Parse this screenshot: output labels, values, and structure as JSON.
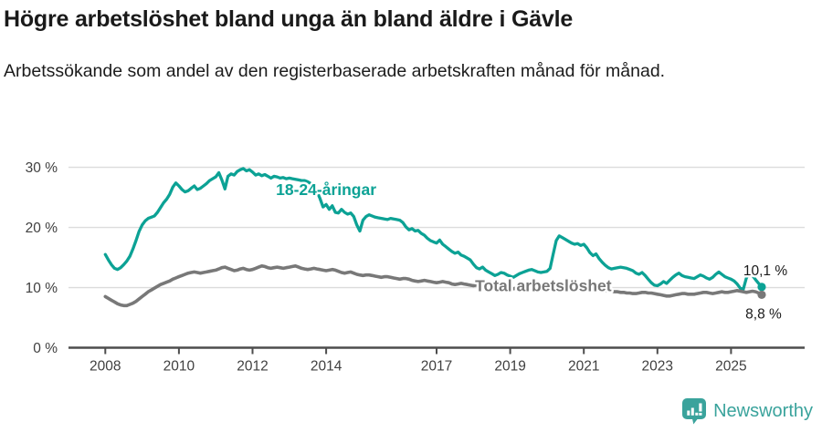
{
  "header": {
    "title": "Högre arbetslöshet bland unga än bland äldre i Gävle",
    "subtitle": "Arbetssökande som andel av den registerbaserade arbetskraften månad för månad."
  },
  "chart_data": {
    "type": "line",
    "unit": "%",
    "x_start_year": 2008,
    "points_per_year": 12,
    "xlim": [
      2007,
      2027
    ],
    "ylim": [
      0,
      31.9
    ],
    "grid": "horizontal",
    "legend_position": "inline-labels",
    "x_ticks": [
      2008,
      2010,
      2012,
      2014,
      2017,
      2019,
      2021,
      2023,
      2025
    ],
    "y_ticks": [
      {
        "value": 0,
        "label": "0 %"
      },
      {
        "value": 10,
        "label": "10 %"
      },
      {
        "value": 20,
        "label": "20 %"
      },
      {
        "value": 30,
        "label": "30 %"
      }
    ],
    "series": [
      {
        "name": "18-24-åringar",
        "color": "#0ca295",
        "label_x_year": 2014.0,
        "label_y_value": 25.4,
        "end_label": "10,1 %",
        "end_label_dx": 4,
        "end_label_dy": -13,
        "values": [
          15.5,
          14.6,
          13.8,
          13.2,
          13.0,
          13.3,
          13.8,
          14.4,
          15.2,
          16.4,
          17.8,
          19.3,
          20.4,
          21.1,
          21.5,
          21.7,
          21.9,
          22.5,
          23.3,
          24.1,
          24.7,
          25.5,
          26.7,
          27.4,
          26.9,
          26.3,
          25.9,
          26.1,
          26.5,
          26.9,
          26.3,
          26.5,
          26.9,
          27.3,
          27.8,
          28.1,
          28.4,
          29.1,
          27.9,
          26.4,
          28.5,
          28.9,
          28.7,
          29.3,
          29.6,
          29.8,
          29.4,
          29.6,
          29.2,
          28.7,
          28.9,
          28.6,
          28.8,
          28.5,
          28.2,
          28.5,
          28.4,
          28.2,
          28.3,
          28.1,
          28.2,
          28.1,
          28.0,
          27.9,
          27.8,
          27.8,
          27.6,
          27.3,
          27.0,
          26.0,
          24.8,
          23.4,
          23.8,
          23.0,
          23.6,
          22.5,
          22.4,
          23.0,
          22.5,
          22.2,
          22.4,
          21.8,
          20.4,
          19.4,
          21.2,
          21.8,
          22.1,
          21.9,
          21.7,
          21.6,
          21.5,
          21.4,
          21.3,
          21.5,
          21.4,
          21.3,
          21.2,
          20.8,
          20.1,
          19.6,
          19.8,
          19.4,
          19.5,
          19.0,
          18.7,
          18.2,
          17.8,
          17.6,
          17.4,
          17.9,
          17.2,
          16.8,
          16.4,
          16.0,
          15.7,
          15.9,
          15.4,
          15.2,
          14.9,
          14.6,
          13.9,
          13.3,
          13.1,
          13.4,
          12.9,
          12.6,
          12.3,
          12.0,
          12.2,
          12.5,
          12.4,
          12.1,
          11.9,
          11.7,
          12.0,
          12.3,
          12.5,
          12.7,
          12.9,
          13.0,
          12.8,
          12.6,
          12.5,
          12.6,
          12.7,
          13.2,
          15.5,
          17.8,
          18.6,
          18.3,
          18.0,
          17.7,
          17.4,
          17.2,
          17.3,
          17.0,
          17.2,
          16.6,
          15.8,
          15.3,
          15.6,
          14.8,
          14.2,
          13.7,
          13.3,
          13.1,
          13.2,
          13.3,
          13.4,
          13.3,
          13.2,
          13.0,
          12.8,
          12.4,
          12.2,
          12.5,
          12.0,
          11.4,
          10.8,
          10.4,
          10.3,
          10.6,
          11.0,
          10.7,
          11.2,
          11.7,
          12.1,
          12.4,
          12.0,
          11.8,
          11.7,
          11.6,
          11.5,
          11.8,
          12.1,
          11.9,
          11.6,
          11.4,
          11.7,
          12.2,
          12.6,
          12.2,
          11.8,
          11.6,
          11.4,
          11.1,
          10.6,
          9.9,
          9.7,
          11.6,
          12.5,
          12.0,
          11.3,
          10.7,
          10.1
        ]
      },
      {
        "name": "Total arbetslöshet",
        "color": "#787878",
        "label_x_year": 2019.9,
        "label_y_value": 9.4,
        "end_label": "8,8 %",
        "end_label_dx": 2,
        "end_label_dy": 26,
        "values": [
          8.5,
          8.2,
          7.9,
          7.6,
          7.3,
          7.1,
          7.0,
          7.0,
          7.2,
          7.4,
          7.7,
          8.1,
          8.5,
          8.9,
          9.3,
          9.6,
          9.9,
          10.2,
          10.5,
          10.7,
          10.9,
          11.1,
          11.4,
          11.6,
          11.8,
          12.0,
          12.2,
          12.4,
          12.5,
          12.6,
          12.5,
          12.4,
          12.5,
          12.6,
          12.7,
          12.8,
          12.9,
          13.1,
          13.3,
          13.4,
          13.2,
          13.0,
          12.8,
          12.9,
          13.1,
          13.2,
          13.0,
          12.9,
          13.0,
          13.2,
          13.4,
          13.6,
          13.5,
          13.3,
          13.2,
          13.3,
          13.4,
          13.3,
          13.2,
          13.3,
          13.4,
          13.5,
          13.6,
          13.4,
          13.2,
          13.1,
          13.0,
          13.1,
          13.2,
          13.1,
          13.0,
          12.9,
          12.8,
          12.9,
          13.0,
          12.9,
          12.7,
          12.5,
          12.4,
          12.5,
          12.6,
          12.4,
          12.2,
          12.1,
          12.0,
          12.1,
          12.1,
          12.0,
          11.9,
          11.8,
          11.7,
          11.8,
          11.8,
          11.7,
          11.6,
          11.5,
          11.4,
          11.5,
          11.5,
          11.4,
          11.2,
          11.1,
          11.0,
          11.1,
          11.2,
          11.1,
          11.0,
          10.9,
          10.8,
          10.9,
          11.0,
          10.9,
          10.8,
          10.6,
          10.5,
          10.6,
          10.7,
          10.6,
          10.5,
          10.4,
          10.3,
          10.4,
          10.3,
          10.2,
          10.1,
          10.0,
          9.9,
          10.0,
          10.1,
          10.0,
          9.9,
          9.9,
          9.8,
          9.8,
          9.9,
          9.8,
          9.7,
          9.7,
          9.8,
          9.8,
          9.9,
          9.9,
          10.0,
          10.0,
          10.1,
          10.1,
          10.3,
          10.4,
          10.4,
          10.3,
          10.3,
          10.2,
          10.2,
          10.1,
          10.1,
          10.0,
          10.0,
          9.9,
          9.9,
          9.8,
          9.7,
          9.6,
          9.5,
          9.5,
          9.4,
          9.4,
          9.3,
          9.3,
          9.2,
          9.2,
          9.1,
          9.1,
          9.0,
          9.0,
          9.1,
          9.2,
          9.2,
          9.1,
          9.1,
          9.0,
          8.9,
          8.8,
          8.7,
          8.6,
          8.6,
          8.7,
          8.8,
          8.9,
          9.0,
          9.0,
          8.9,
          8.9,
          8.9,
          9.0,
          9.1,
          9.2,
          9.2,
          9.1,
          9.0,
          9.1,
          9.2,
          9.3,
          9.2,
          9.2,
          9.3,
          9.4,
          9.5,
          9.4,
          9.3,
          9.2,
          9.3,
          9.4,
          9.3,
          9.1,
          8.8
        ]
      }
    ]
  },
  "footer": {
    "brand": "Newsworthy"
  },
  "colors": {
    "accent_teal": "#0ca295",
    "line_gray": "#787878",
    "grid": "#dcdcdc",
    "axis": "#4d4d4d",
    "title_text": "#1a1a1a",
    "tick_text": "#404040",
    "brand_teal": "#3aa39c"
  }
}
